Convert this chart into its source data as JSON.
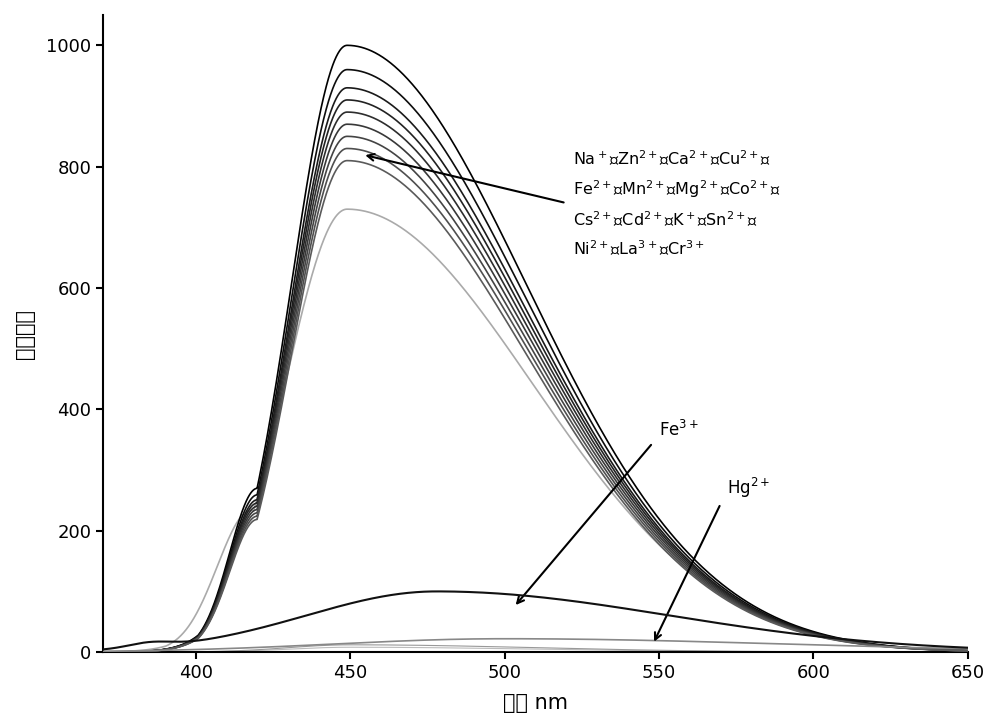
{
  "xlabel": "波长 nm",
  "ylabel": "吸收强度",
  "xlim": [
    370,
    650
  ],
  "ylim": [
    0,
    1050
  ],
  "xticks": [
    400,
    450,
    500,
    550,
    600,
    650
  ],
  "yticks": [
    0,
    200,
    400,
    600,
    800,
    1000
  ],
  "background_color": "#ffffff",
  "main_peak_amps": [
    1000,
    960,
    930,
    910,
    890,
    870,
    850,
    830,
    810
  ],
  "light_gray_amp": 730,
  "fe3_amp": 100,
  "hg2_amp": 22,
  "dark_colors": [
    "#000000",
    "#0d0d0d",
    "#1a1a1a",
    "#222222",
    "#2d2d2d",
    "#383838",
    "#444444",
    "#4f4f4f",
    "#5a5a5a"
  ],
  "light_gray_color": "#aaaaaa",
  "fe3_color": "#111111",
  "hg2_color": "#888888"
}
